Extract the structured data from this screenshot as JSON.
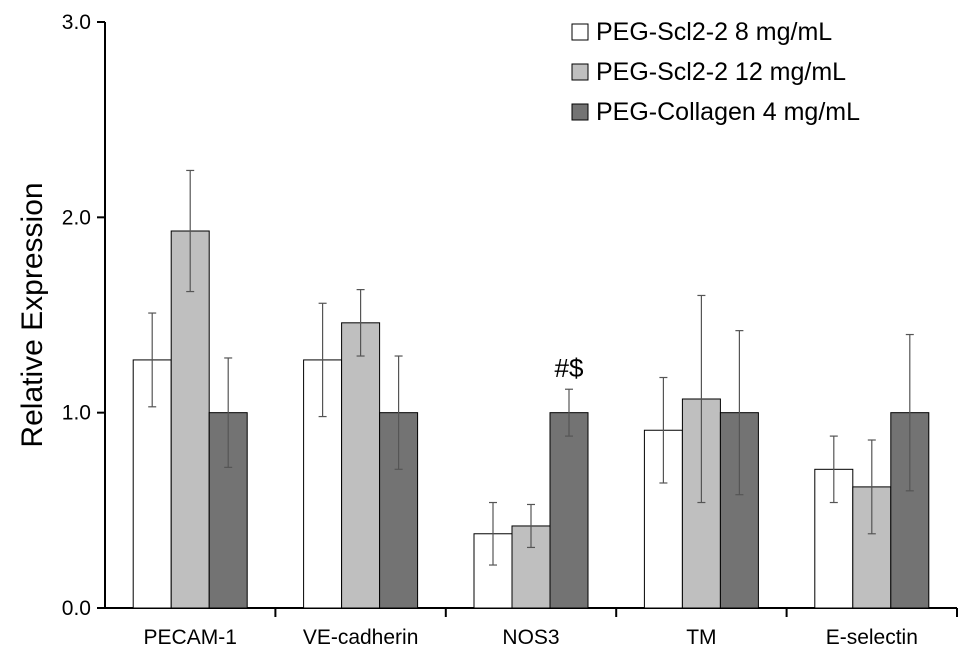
{
  "chart_data": {
    "type": "bar",
    "ylabel": "Relative Expression",
    "ylim": [
      0,
      3
    ],
    "yticks": [
      "0.0",
      "1.0",
      "2.0",
      "3.0"
    ],
    "categories": [
      "PECAM-1",
      "VE-cadherin",
      "NOS3",
      "TM",
      "E-selectin"
    ],
    "series": [
      {
        "name": "PEG-Scl2-2 8 mg/mL",
        "color": "#ffffff",
        "values": [
          1.27,
          1.27,
          0.38,
          0.91,
          0.71
        ],
        "errors": [
          0.24,
          0.29,
          0.16,
          0.27,
          0.17
        ]
      },
      {
        "name": "PEG-Scl2-2 12 mg/mL",
        "color": "#bfbfbf",
        "values": [
          1.93,
          1.46,
          0.42,
          1.07,
          0.62
        ],
        "errors": [
          0.31,
          0.17,
          0.11,
          0.53,
          0.24
        ]
      },
      {
        "name": "PEG-Collagen 4 mg/mL",
        "color": "#737373",
        "values": [
          1.0,
          1.0,
          1.0,
          1.0,
          1.0
        ],
        "errors": [
          0.28,
          0.29,
          0.12,
          0.42,
          0.4
        ]
      }
    ],
    "annotations": [
      {
        "category": "NOS3",
        "series": 2,
        "text": "#$"
      }
    ],
    "legend_position": "top-right",
    "grid": false
  }
}
